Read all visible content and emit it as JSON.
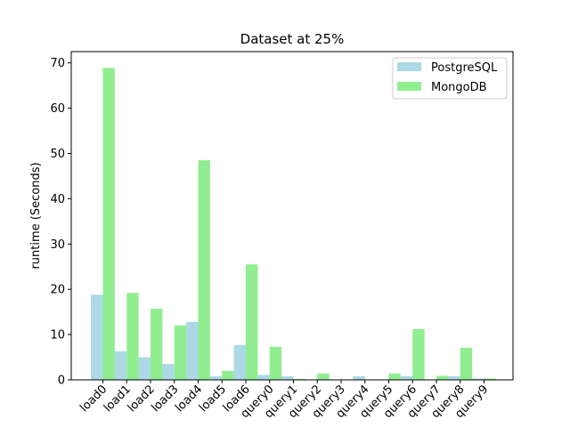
{
  "chart_data": {
    "type": "bar",
    "title": "Dataset at 25%",
    "xlabel": "",
    "ylabel": "runtime (Seconds)",
    "ylim": [
      0,
      72.5
    ],
    "yticks": [
      0,
      10,
      20,
      30,
      40,
      50,
      60,
      70
    ],
    "categories": [
      "load0",
      "load1",
      "load2",
      "load3",
      "load4",
      "load5",
      "load6",
      "query0",
      "query1",
      "query2",
      "query3",
      "query4",
      "query5",
      "query6",
      "query7",
      "query8",
      "query9"
    ],
    "series": [
      {
        "name": "PostgreSQL",
        "color": "#add8e6",
        "values": [
          18.8,
          6.3,
          5.0,
          3.5,
          12.8,
          0.8,
          7.7,
          1.1,
          0.8,
          0.1,
          0.1,
          0.8,
          0.1,
          0.8,
          0.1,
          0.8,
          0.3
        ]
      },
      {
        "name": "MongoDB",
        "color": "#90ee90",
        "values": [
          68.9,
          19.2,
          15.7,
          12.0,
          48.5,
          2.0,
          25.5,
          7.3,
          0.2,
          1.4,
          0.1,
          0.1,
          1.4,
          11.2,
          0.9,
          7.1,
          0.3
        ]
      }
    ],
    "legend": "top-right",
    "grid": false
  }
}
